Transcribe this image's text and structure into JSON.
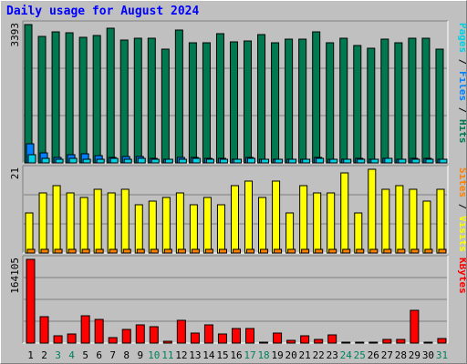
{
  "chart_data": {
    "title": "Daily usage for August 2024",
    "type": "bar",
    "x": [
      "1",
      "2",
      "3",
      "4",
      "5",
      "6",
      "7",
      "8",
      "9",
      "10",
      "11",
      "12",
      "13",
      "14",
      "15",
      "16",
      "17",
      "18",
      "19",
      "20",
      "21",
      "22",
      "23",
      "24",
      "25",
      "26",
      "27",
      "28",
      "29",
      "30",
      "31"
    ],
    "weekend_days": [
      "3",
      "4",
      "10",
      "11",
      "17",
      "18",
      "24",
      "25",
      "31"
    ],
    "colors": {
      "title": "#0000ff",
      "pages": "#00d0e0",
      "files": "#0080ff",
      "hits": "#007850",
      "sites": "#ff8000",
      "visits": "#ffff00",
      "kbytes": "#ff0000",
      "weekday_label": "#000000",
      "weekend_label": "#00805c"
    },
    "panels": [
      {
        "id": "hits-files-pages",
        "ymax_label": "3393",
        "ylim": [
          0,
          3393
        ],
        "legend": [
          {
            "key": "pages",
            "label": "Pages"
          },
          {
            "sep": " / "
          },
          {
            "key": "files",
            "label": "Files"
          },
          {
            "sep": " / "
          },
          {
            "key": "hits",
            "label": "Hits"
          }
        ],
        "series": [
          {
            "name": "Hits",
            "key": "hits",
            "values": [
              3393,
              3100,
              3220,
              3200,
              3080,
              3130,
              3310,
              3010,
              3060,
              3050,
              2780,
              3250,
              2950,
              2940,
              3180,
              2960,
              3000,
              3140,
              2950,
              3040,
              3030,
              3220,
              2940,
              3060,
              2890,
              2820,
              3040,
              2950,
              3060,
              3060,
              2800
            ]
          },
          {
            "name": "Files",
            "key": "files",
            "values": [
              460,
              250,
              130,
              200,
              230,
              170,
              130,
              150,
              150,
              110,
              90,
              130,
              130,
              110,
              120,
              100,
              130,
              90,
              90,
              100,
              80,
              140,
              90,
              100,
              110,
              100,
              120,
              100,
              120,
              110,
              100
            ]
          },
          {
            "name": "Pages",
            "key": "pages",
            "values": [
              210,
              110,
              100,
              110,
              100,
              100,
              110,
              100,
              110,
              100,
              90,
              100,
              110,
              100,
              100,
              100,
              110,
              100,
              100,
              100,
              90,
              110,
              100,
              100,
              100,
              100,
              110,
              100,
              100,
              100,
              100
            ]
          }
        ]
      },
      {
        "id": "visits-sites",
        "ymax_label": "21",
        "ylim": [
          0,
          21
        ],
        "legend": [
          {
            "key": "sites",
            "label": "Sites"
          },
          {
            "sep": " / "
          },
          {
            "key": "visits",
            "label": "Visits"
          }
        ],
        "series": [
          {
            "name": "Visits",
            "key": "visits",
            "values": [
              10,
              15,
              17,
              15,
              14,
              16,
              15,
              16,
              12,
              13,
              14,
              15,
              12,
              14,
              12,
              17,
              18,
              14,
              18,
              10,
              17,
              15,
              15,
              20,
              10,
              21,
              16,
              17,
              16,
              13,
              16
            ]
          },
          {
            "name": "Sites",
            "key": "sites",
            "values": [
              1,
              1,
              1,
              1,
              1,
              1,
              1,
              1,
              1,
              1,
              1,
              1,
              1,
              1,
              1,
              1,
              1,
              1,
              1,
              1,
              1,
              1,
              1,
              1,
              1,
              1,
              1,
              1,
              1,
              1,
              1
            ]
          }
        ]
      },
      {
        "id": "kbytes",
        "ymax_label": "164105",
        "ylim": [
          0,
          164105
        ],
        "legend": [
          {
            "key": "kbytes",
            "label": "KBytes"
          }
        ],
        "series": [
          {
            "name": "KBytes",
            "key": "kbytes",
            "values": [
              164105,
              52000,
              14000,
              17000,
              54000,
              46000,
              11000,
              27000,
              35000,
              32000,
              4000,
              44000,
              20000,
              36000,
              18000,
              28000,
              28000,
              2000,
              19000,
              6000,
              15000,
              8000,
              16000,
              2000,
              2000,
              1500,
              8000,
              8000,
              64000,
              2000,
              9000
            ]
          }
        ]
      }
    ]
  }
}
